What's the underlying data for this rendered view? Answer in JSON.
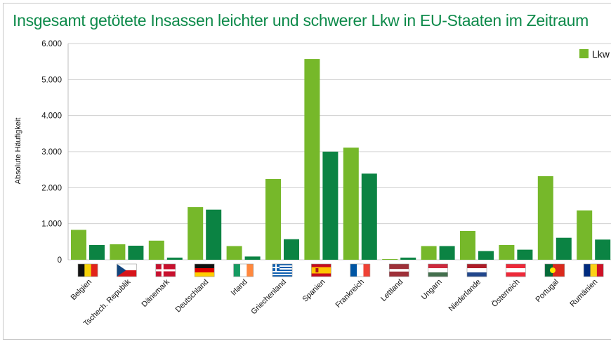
{
  "colors": {
    "series_1": "#76b82a",
    "series_2": "#0b8343",
    "title": "#0d8a4a",
    "grid": "#cfcfcf"
  },
  "chart_data": {
    "type": "bar",
    "title": "Insgesamt getötete Insassen leichter und schwerer Lkw in EU-Staaten im Zeitraum",
    "xlabel": "",
    "ylabel": "Absolute Häufigkeit",
    "ylim": [
      0,
      6000
    ],
    "yticks": [
      "0",
      "1.000",
      "2.000",
      "3.000",
      "4.000",
      "5.000",
      "6.000"
    ],
    "ytick_values": [
      0,
      1000,
      2000,
      3000,
      4000,
      5000,
      6000
    ],
    "grid": true,
    "legend_position": "top-right",
    "categories": [
      "Belgien",
      "Tschech. Republik",
      "Dänemark",
      "Deutschland",
      "Irland",
      "Griechenland",
      "Spanien",
      "Frankreich",
      "Lettland",
      "Ungarn",
      "Niederlande",
      "Österreich",
      "Portugal",
      "Rumänien"
    ],
    "category_flags": [
      "belgium-flag-icon",
      "czech-flag-icon",
      "denmark-flag-icon",
      "germany-flag-icon",
      "ireland-flag-icon",
      "greece-flag-icon",
      "spain-flag-icon",
      "france-flag-icon",
      "latvia-flag-icon",
      "hungary-flag-icon",
      "netherlands-flag-icon",
      "austria-flag-icon",
      "portugal-flag-icon",
      "romania-flag-icon"
    ],
    "series": [
      {
        "name": "Lkw",
        "color": "#76b82a",
        "values": [
          830,
          430,
          530,
          1460,
          380,
          2240,
          5570,
          3110,
          20,
          380,
          800,
          410,
          2320,
          1370
        ]
      },
      {
        "name": "",
        "color": "#0b8343",
        "values": [
          410,
          390,
          60,
          1390,
          90,
          570,
          3000,
          2390,
          60,
          380,
          240,
          280,
          610,
          560
        ]
      }
    ]
  }
}
